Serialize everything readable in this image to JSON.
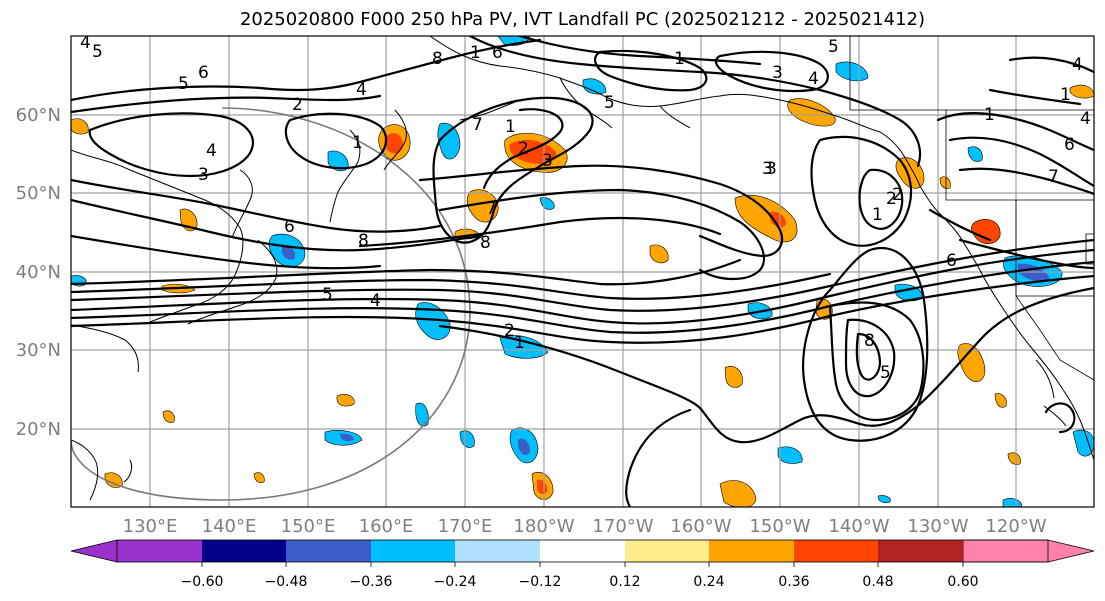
{
  "title": "2025020800 F000 250 hPa PV, IVT Landfall PC (2025021212 - 2025021412)",
  "axes": {
    "lat_labels": [
      "60°N",
      "50°N",
      "40°N",
      "30°N",
      "20°N"
    ],
    "lon_labels": [
      "130°E",
      "140°E",
      "150°E",
      "160°E",
      "170°E",
      "180°W",
      "170°W",
      "160°W",
      "150°W",
      "140°W",
      "130°W",
      "120°W"
    ]
  },
  "colorbar": {
    "ticks": [
      "−0.60",
      "−0.48",
      "−0.36",
      "−0.24",
      "−0.12",
      "0.12",
      "0.24",
      "0.36",
      "0.48",
      "0.60"
    ],
    "colors": [
      "#9932cc",
      "#00008b",
      "#3a5fcd",
      "#00bfff",
      "#b0e2ff",
      "#ffffff",
      "#ffec8b",
      "#ffa500",
      "#ff4500",
      "#b22222",
      "#ff82ab"
    ]
  },
  "contour_labels": [
    "5",
    "6",
    "4",
    "5",
    "5",
    "2",
    "4",
    "4",
    "1",
    "3",
    "8",
    "1",
    "6",
    "2",
    "1",
    "7",
    "3",
    "4",
    "5",
    "1",
    "3",
    "2",
    "1",
    "6",
    "8",
    "8",
    "5",
    "4",
    "2",
    "1",
    "7",
    "3",
    "2",
    "4",
    "6",
    "1",
    "7",
    "6",
    "5",
    "8",
    "1",
    "3",
    "4"
  ]
}
